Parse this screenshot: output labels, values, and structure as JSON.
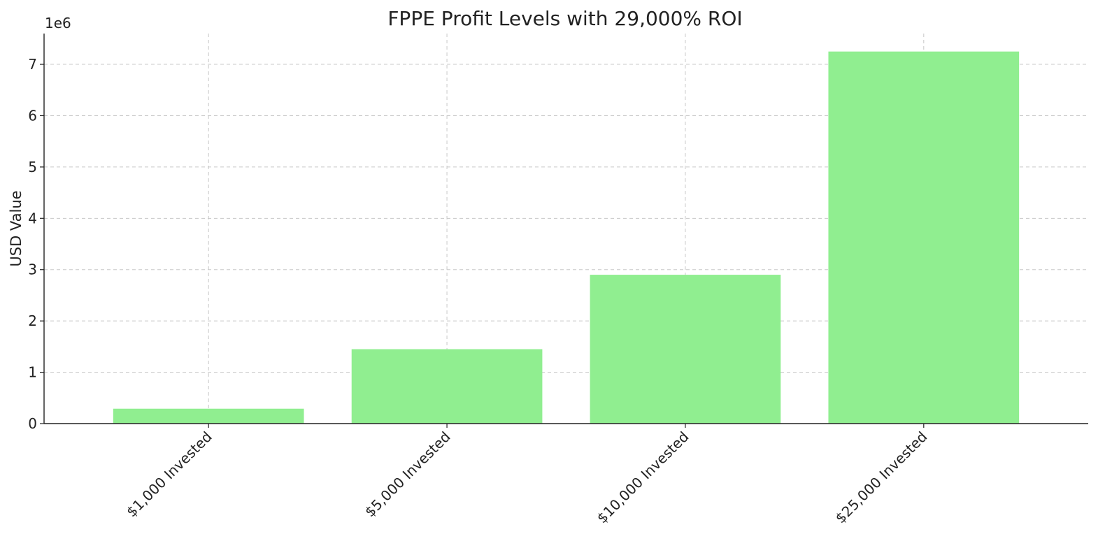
{
  "chart_data": {
    "type": "bar",
    "title": "FPPE Profit Levels with 29,000% ROI",
    "xlabel": "",
    "ylabel": "USD Value",
    "categories": [
      "$1,000 Invested",
      "$5,000 Invested",
      "$10,000 Invested",
      "$25,000 Invested"
    ],
    "values": [
      290000,
      1450000,
      2900000,
      7250000
    ],
    "ylim": [
      0,
      7600000
    ],
    "yticks": [
      0,
      1,
      2,
      3,
      4,
      5,
      6,
      7
    ],
    "ytick_multiplier": 1000000,
    "offset_text": "1e6",
    "bar_color": "#90ee90",
    "grid": true,
    "legend": "none"
  }
}
